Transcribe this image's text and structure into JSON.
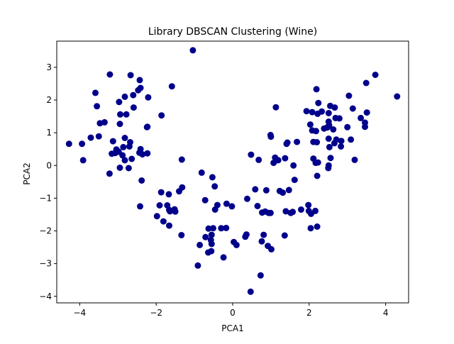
{
  "colors": {
    "point": "#00008b",
    "axis": "#000000",
    "background": "#ffffff"
  },
  "chart_data": {
    "type": "scatter",
    "title": "Library DBSCAN Clustering (Wine)",
    "xlabel": "PCA1",
    "ylabel": "PCA2",
    "xlim": [
      -4.6,
      4.6
    ],
    "ylim": [
      -4.2,
      3.8
    ],
    "xticks": [
      -4,
      -2,
      0,
      2,
      4
    ],
    "yticks": [
      -4,
      -3,
      -2,
      -1,
      0,
      1,
      2,
      3
    ],
    "xtick_labels": [
      "−4",
      "−2",
      "0",
      "2",
      "4"
    ],
    "ytick_labels": [
      "−4",
      "−3",
      "−2",
      "−1",
      "0",
      "1",
      "2",
      "3"
    ],
    "grid": false,
    "legend": false,
    "series": [
      {
        "color": "#00008b",
        "points": [
          [
            -1.04,
            3.52
          ],
          [
            -3.21,
            2.78
          ],
          [
            -2.67,
            2.76
          ],
          [
            -2.43,
            2.61
          ],
          [
            -2.82,
            2.1
          ],
          [
            -2.97,
            1.94
          ],
          [
            -2.6,
            2.15
          ],
          [
            -2.47,
            2.3
          ],
          [
            -2.41,
            2.37
          ],
          [
            -2.21,
            2.08
          ],
          [
            -1.59,
            2.42
          ],
          [
            -3.59,
            2.22
          ],
          [
            -3.35,
            1.32
          ],
          [
            -3.47,
            1.29
          ],
          [
            -3.55,
            1.81
          ],
          [
            -2.94,
            1.56
          ],
          [
            -2.78,
            1.56
          ],
          [
            -2.59,
            1.77
          ],
          [
            -1.86,
            1.53
          ],
          [
            -2.95,
            1.27
          ],
          [
            -2.23,
            1.18
          ],
          [
            -2.24,
            1.17
          ],
          [
            -3.71,
            0.85
          ],
          [
            -3.5,
            0.89
          ],
          [
            -2.82,
            0.84
          ],
          [
            -3.13,
            0.74
          ],
          [
            -4.28,
            0.66
          ],
          [
            -3.94,
            0.66
          ],
          [
            -3.04,
            0.49
          ],
          [
            -2.86,
            0.56
          ],
          [
            -2.98,
            0.42
          ],
          [
            -2.7,
            0.58
          ],
          [
            -2.68,
            0.71
          ],
          [
            -2.88,
            0.31
          ],
          [
            -3.07,
            0.38
          ],
          [
            -3.16,
            0.36
          ],
          [
            -2.41,
            0.5
          ],
          [
            -2.44,
            0.39
          ],
          [
            -2.23,
            0.37
          ],
          [
            -2.36,
            0.34
          ],
          [
            -2.64,
            0.2
          ],
          [
            -2.82,
            0.16
          ],
          [
            -2.72,
            -0.08
          ],
          [
            -3.91,
            0.16
          ],
          [
            -3.22,
            -0.25
          ],
          [
            -2.95,
            -0.07
          ],
          [
            -2.38,
            -0.46
          ],
          [
            -2.42,
            -1.25
          ],
          [
            -1.87,
            -0.82
          ],
          [
            -1.91,
            -1.22
          ],
          [
            -1.67,
            -0.88
          ],
          [
            -1.71,
            -1.22
          ],
          [
            -1.4,
            -0.79
          ],
          [
            -1.32,
            -0.67
          ],
          [
            -1.52,
            -1.34
          ],
          [
            -1.66,
            -1.36
          ],
          [
            -1.64,
            -1.4
          ],
          [
            -1.5,
            -1.41
          ],
          [
            -1.98,
            -1.55
          ],
          [
            -1.81,
            -1.71
          ],
          [
            -1.66,
            -1.84
          ],
          [
            -1.34,
            -2.13
          ],
          [
            -1.33,
            0.18
          ],
          [
            -0.81,
            -0.22
          ],
          [
            -0.53,
            -0.36
          ],
          [
            -0.47,
            -0.64
          ],
          [
            -0.72,
            -1.06
          ],
          [
            -0.4,
            -1.21
          ],
          [
            -0.16,
            -1.17
          ],
          [
            -0.02,
            -1.25
          ],
          [
            -0.46,
            -1.35
          ],
          [
            -0.63,
            -1.93
          ],
          [
            -0.51,
            -1.92
          ],
          [
            -0.3,
            -1.92
          ],
          [
            -0.17,
            -1.91
          ],
          [
            -0.55,
            -2.12
          ],
          [
            -0.86,
            -2.43
          ],
          [
            -0.71,
            -2.19
          ],
          [
            -0.64,
            -2.66
          ],
          [
            -0.57,
            -2.28
          ],
          [
            -0.55,
            -2.4
          ],
          [
            -0.56,
            -2.62
          ],
          [
            -0.24,
            -2.81
          ],
          [
            -0.91,
            -3.06
          ],
          [
            0.03,
            -2.34
          ],
          [
            0.1,
            -2.43
          ],
          [
            0.33,
            -2.18
          ],
          [
            0.36,
            -2.11
          ],
          [
            0.48,
            0.33
          ],
          [
            0.68,
            0.17
          ],
          [
            0.59,
            -0.73
          ],
          [
            0.38,
            -1.02
          ],
          [
            0.65,
            -1.24
          ],
          [
            0.77,
            -1.44
          ],
          [
            0.85,
            -1.41
          ],
          [
            0.94,
            -1.45
          ],
          [
            0.99,
            -1.45
          ],
          [
            0.81,
            -2.12
          ],
          [
            0.76,
            -2.32
          ],
          [
            0.92,
            -2.46
          ],
          [
            1.01,
            -2.56
          ],
          [
            0.73,
            -3.36
          ],
          [
            0.47,
            -3.86
          ],
          [
            1.13,
            1.78
          ],
          [
            0.99,
            0.93
          ],
          [
            1.0,
            0.88
          ],
          [
            1.11,
            0.24
          ],
          [
            1.19,
            0.16
          ],
          [
            1.07,
            0.08
          ],
          [
            1.37,
            0.22
          ],
          [
            1.41,
            0.66
          ],
          [
            1.43,
            0.7
          ],
          [
            1.68,
            0.72
          ],
          [
            1.59,
            0.0
          ],
          [
            1.62,
            -0.44
          ],
          [
            1.47,
            -0.75
          ],
          [
            1.23,
            -0.78
          ],
          [
            1.31,
            -0.83
          ],
          [
            0.88,
            -0.76
          ],
          [
            1.39,
            -1.4
          ],
          [
            1.57,
            -1.42
          ],
          [
            1.52,
            -1.45
          ],
          [
            1.79,
            -1.35
          ],
          [
            1.36,
            -2.14
          ],
          [
            1.99,
            -1.39
          ],
          [
            2.04,
            -1.92
          ],
          [
            2.21,
            -1.87
          ],
          [
            2.16,
            -1.39
          ],
          [
            2.05,
            -1.48
          ],
          [
            1.98,
            -1.21
          ],
          [
            1.93,
            1.66
          ],
          [
            2.08,
            1.63
          ],
          [
            2.19,
            2.33
          ],
          [
            2.24,
            1.91
          ],
          [
            2.22,
            1.58
          ],
          [
            2.33,
            1.65
          ],
          [
            2.55,
            1.82
          ],
          [
            2.67,
            1.77
          ],
          [
            2.51,
            1.6
          ],
          [
            2.51,
            1.34
          ],
          [
            2.52,
            1.23
          ],
          [
            2.63,
            1.1
          ],
          [
            2.69,
            1.45
          ],
          [
            2.79,
            1.44
          ],
          [
            2.03,
            1.25
          ],
          [
            2.08,
            1.07
          ],
          [
            2.18,
            1.05
          ],
          [
            2.39,
            1.13
          ],
          [
            2.47,
            1.16
          ],
          [
            2.2,
            0.71
          ],
          [
            2.11,
            0.72
          ],
          [
            2.51,
            0.82
          ],
          [
            2.53,
            0.56
          ],
          [
            2.66,
            0.68
          ],
          [
            2.71,
            0.79
          ],
          [
            2.84,
            0.75
          ],
          [
            2.83,
            0.58
          ],
          [
            2.11,
            0.21
          ],
          [
            2.17,
            0.08
          ],
          [
            2.23,
            0.09
          ],
          [
            2.21,
            -0.32
          ],
          [
            2.56,
            0.23
          ],
          [
            2.51,
            0.0
          ],
          [
            2.5,
            -0.08
          ],
          [
            3.09,
            0.79
          ],
          [
            3.19,
            0.17
          ],
          [
            3.0,
            1.17
          ],
          [
            3.04,
            2.13
          ],
          [
            3.14,
            1.74
          ],
          [
            3.35,
            1.45
          ],
          [
            3.46,
            1.31
          ],
          [
            3.46,
            1.18
          ],
          [
            3.51,
            1.62
          ],
          [
            3.49,
            2.52
          ],
          [
            3.73,
            2.77
          ],
          [
            4.3,
            2.11
          ]
        ]
      }
    ]
  }
}
